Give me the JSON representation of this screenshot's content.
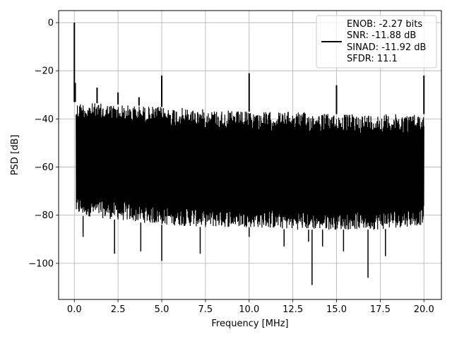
{
  "chart_data": {
    "type": "line",
    "title": "",
    "xlabel": "Frequency [MHz]",
    "ylabel": "PSD [dB]",
    "xlim": [
      -0.9,
      21.0
    ],
    "ylim": [
      -115,
      5
    ],
    "x_ticks": [
      0.0,
      2.5,
      5.0,
      7.5,
      10.0,
      12.5,
      15.0,
      17.5,
      20.0
    ],
    "x_tick_labels": [
      "0.0",
      "2.5",
      "5.0",
      "7.5",
      "10.0",
      "12.5",
      "15.0",
      "17.5",
      "20.0"
    ],
    "y_ticks": [
      0,
      -20,
      -40,
      -60,
      -80,
      -100
    ],
    "y_tick_labels": [
      "0",
      "−20",
      "−40",
      "−60",
      "−80",
      "−100"
    ],
    "grid": true,
    "legend_position": "top-right",
    "legend_entries": [
      "ENOB: -2.27 bits",
      "SNR: -11.88 dB",
      "SINAD: -11.92 dB",
      "SFDR: 11.1"
    ],
    "series": [
      {
        "color": "#000000",
        "noise_band_upper_envelope": {
          "x": [
            0.1,
            2.5,
            5.0,
            7.5,
            10.0,
            12.5,
            15.0,
            17.5,
            20.0
          ],
          "y": [
            -33,
            -34,
            -35,
            -36,
            -37,
            -37,
            -38,
            -38,
            -38
          ]
        },
        "noise_band_lower_envelope": {
          "x": [
            0.1,
            2.5,
            5.0,
            7.5,
            10.0,
            12.5,
            15.0,
            17.5,
            20.0
          ],
          "y": [
            -80,
            -82,
            -84,
            -85,
            -85,
            -86,
            -86,
            -86,
            -84
          ]
        },
        "upward_spikes": [
          {
            "x": 0.0,
            "y": 0.0
          },
          {
            "x": 0.05,
            "y": -25.0
          },
          {
            "x": 1.3,
            "y": -27.0
          },
          {
            "x": 2.5,
            "y": -29.0
          },
          {
            "x": 3.7,
            "y": -31.0
          },
          {
            "x": 5.0,
            "y": -22.0
          },
          {
            "x": 10.0,
            "y": -21.0
          },
          {
            "x": 15.0,
            "y": -26.0
          },
          {
            "x": 20.0,
            "y": -22.0
          }
        ],
        "downward_spikes": [
          {
            "x": 0.5,
            "y": -89.0
          },
          {
            "x": 2.3,
            "y": -96.0
          },
          {
            "x": 3.8,
            "y": -95.0
          },
          {
            "x": 5.0,
            "y": -99.0
          },
          {
            "x": 7.2,
            "y": -96.0
          },
          {
            "x": 10.0,
            "y": -89.0
          },
          {
            "x": 12.0,
            "y": -93.0
          },
          {
            "x": 13.4,
            "y": -91.0
          },
          {
            "x": 13.6,
            "y": -109.0
          },
          {
            "x": 14.2,
            "y": -93.0
          },
          {
            "x": 15.4,
            "y": -95.0
          },
          {
            "x": 16.8,
            "y": -106.0
          },
          {
            "x": 17.8,
            "y": -97.0
          }
        ]
      }
    ]
  }
}
